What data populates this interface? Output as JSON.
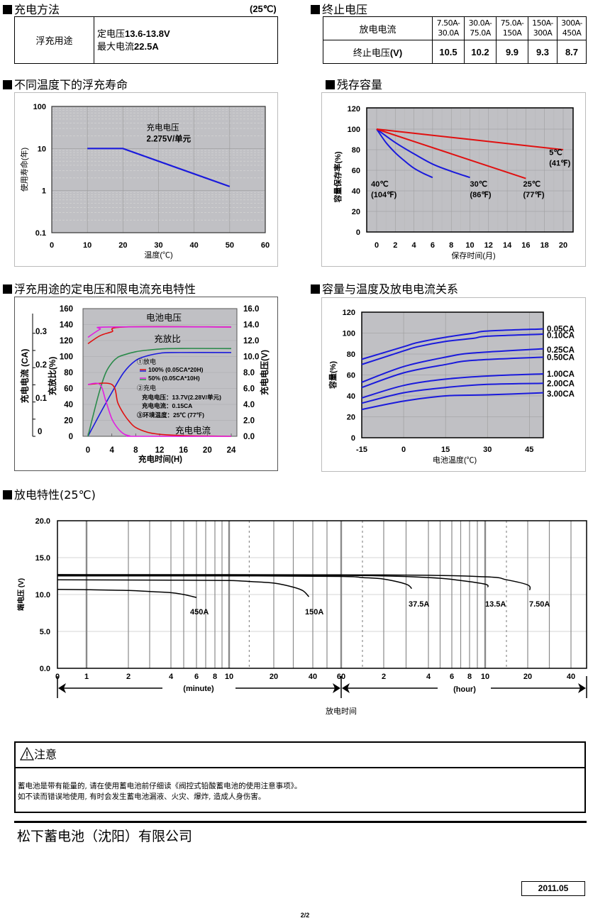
{
  "charging_method": {
    "title": "充电方法",
    "temp_note": "(25℃)",
    "usage_label": "浮充用途",
    "line1_label": "定电压",
    "line1_value": "13.6-13.8V",
    "line2_label": "最大电流",
    "line2_value": "22.5A"
  },
  "cutoff_voltage": {
    "title": "终止电压",
    "row1_header": "放电电流",
    "row2_header_label": "终止电压",
    "row2_header_unit": "(V)",
    "columns": [
      {
        "current_top": "7.50A-",
        "current_bottom": "30.0A",
        "voltage": "10.5"
      },
      {
        "current_top": "30.0A-",
        "current_bottom": "75.0A",
        "voltage": "10.2"
      },
      {
        "current_top": "75.0A-",
        "current_bottom": "150A",
        "voltage": "9.9"
      },
      {
        "current_top": "150A-",
        "current_bottom": "300A",
        "voltage": "9.3"
      },
      {
        "current_top": "300A-",
        "current_bottom": "450A",
        "voltage": "8.7"
      }
    ]
  },
  "float_life": {
    "title": "不同温度下的浮充寿命"
  },
  "residual": {
    "title": "残存容量"
  },
  "float_charge": {
    "title": "浮充用途的定电压和限电流充电特性"
  },
  "capacity_temp": {
    "title": "容量与温度及放电电流关系"
  },
  "discharge": {
    "title": "放电特性(25℃)"
  },
  "caution": {
    "title": "注意",
    "lines": [
      "蓄电池是带有能量的, 请在使用蓄电池前仔细读《阀控式铅酸蓄电池的使用注意事项》。",
      "如不读而错误地使用, 有时会发生蓄电池漏液、火灾、爆炸, 造成人身伤害。"
    ]
  },
  "company": "松下蓄电池（沈阳）有限公司",
  "date": "2011.05",
  "page": "2/2",
  "chart_data": [
    {
      "id": "float_life",
      "type": "line",
      "title": "不同温度下的浮充寿命",
      "xlabel": "温度(℃)",
      "ylabel": "使用寿命(年)",
      "xlim": [
        0,
        60
      ],
      "xticks": [
        0,
        10,
        20,
        30,
        40,
        50,
        60
      ],
      "ylim": [
        0.1,
        100
      ],
      "yscale": "log",
      "yticks": [
        0.1,
        1,
        10,
        100
      ],
      "ytick_labels": [
        "0.1",
        "1",
        "10",
        "100"
      ],
      "grid": true,
      "annotation": {
        "line1": "充电电压",
        "line2": "2.275V/单元",
        "x": 30,
        "y": 25
      },
      "series": [
        {
          "name": "2.275V/单元",
          "color": "#1a1adc",
          "x": [
            10,
            20,
            50
          ],
          "y": [
            10,
            10,
            1.25
          ]
        }
      ]
    },
    {
      "id": "residual",
      "type": "line",
      "title": "残存容量",
      "xlabel": "保存时间(月)",
      "ylabel": "容量保存率(%)",
      "xlim": [
        0,
        20
      ],
      "xticks": [
        0,
        2,
        4,
        6,
        8,
        10,
        12,
        14,
        16,
        18,
        20
      ],
      "ylim": [
        0,
        120
      ],
      "yticks": [
        0,
        20,
        40,
        60,
        80,
        100,
        120
      ],
      "grid": true,
      "series": [
        {
          "name": "40℃",
          "label2": "(104℉)",
          "color": "#1a1adc",
          "x": [
            0,
            1,
            2,
            3,
            4,
            5,
            6
          ],
          "y": [
            100,
            87,
            77,
            69,
            62,
            57,
            53
          ],
          "label_at": [
            -0.6,
            44
          ]
        },
        {
          "name": "30℃",
          "label2": "(86℉)",
          "color": "#1a1adc",
          "x": [
            0,
            2,
            4,
            6,
            8,
            10
          ],
          "y": [
            100,
            87,
            76,
            66,
            59,
            53
          ],
          "label_at": [
            10,
            44
          ]
        },
        {
          "name": "25℃",
          "label2": "(77℉)",
          "color": "#e01010",
          "x": [
            0,
            8,
            16
          ],
          "y": [
            100,
            76,
            52
          ],
          "label_at": [
            15.7,
            44
          ]
        },
        {
          "name": "5℃",
          "label2": "(41℉)",
          "color": "#e01010",
          "x": [
            0,
            20
          ],
          "y": [
            100,
            80
          ],
          "label_at": [
            18.5,
            75
          ]
        }
      ]
    },
    {
      "id": "float_charge",
      "type": "line",
      "title": "浮充用途的定电压和限电流充电特性",
      "xlabel": "充电时间(H)",
      "xlim": [
        0,
        24
      ],
      "xticks": [
        0,
        4,
        8,
        12,
        16,
        20,
        24
      ],
      "y_left_label": "充放比(%)",
      "y_left_lim": [
        0,
        160
      ],
      "y_left_ticks": [
        0,
        20,
        40,
        60,
        80,
        100,
        120,
        140,
        160
      ],
      "y_right_label": "充电电压(V)",
      "y_right_lim": [
        0,
        16
      ],
      "y_right_ticks": [
        "0.0",
        "2.0",
        "4.0",
        "6.0",
        "8.0",
        "10.0",
        "12.0",
        "14.0",
        "16.0"
      ],
      "y_current_label": "充电电流 (CA)",
      "y_current_ticks": [
        "0",
        "0.1",
        "0.2",
        "0.3"
      ],
      "labels": {
        "voltage": "电池电压",
        "ratio": "充放比",
        "current": "充电电流"
      },
      "legend": {
        "item1": "①放电",
        "item1a": "100% (0.05CA*20H)",
        "item1b": "50% (0.05CA*10H)",
        "item2": "②充电",
        "item2a": "充电电压：13.7V(2.28V/单元)",
        "item2b": "充电电流：0.15CA",
        "item3": "③环境温度：25℃ (77℉)"
      },
      "series": [
        {
          "name": "电压 100%",
          "color": "#e01010",
          "x": [
            0,
            2,
            4,
            6,
            24
          ],
          "y": [
            116,
            126,
            131,
            137,
            137
          ]
        },
        {
          "name": "电压 50%",
          "color": "#e020e0",
          "x": [
            0,
            2,
            3.5,
            24
          ],
          "y": [
            124,
            134,
            137,
            137
          ]
        },
        {
          "name": "充放比 100%",
          "color": "#1a1adc",
          "x": [
            0,
            2,
            4,
            6,
            8,
            10,
            12,
            14,
            24
          ],
          "y": [
            0,
            28,
            55,
            80,
            95,
            101,
            104,
            105,
            105
          ]
        },
        {
          "name": "充放比 50%",
          "color": "#2a8a4a",
          "x": [
            0,
            1,
            2,
            3,
            4,
            5,
            6,
            8,
            10,
            14,
            24
          ],
          "y": [
            0,
            30,
            58,
            80,
            92,
            99,
            102,
            106,
            108,
            110,
            110
          ]
        },
        {
          "name": "电流 100%",
          "color": "#e01010",
          "x": [
            0,
            4,
            5,
            6,
            7,
            8,
            10,
            12,
            14,
            18,
            24
          ],
          "y": [
            65,
            65,
            42,
            28,
            18,
            11,
            5,
            2.5,
            1.5,
            0.5,
            0
          ]
        },
        {
          "name": "电流 50%",
          "color": "#e020e0",
          "x": [
            0,
            2,
            3,
            4,
            5,
            6,
            7,
            8,
            24
          ],
          "y": [
            65,
            65,
            44,
            22,
            10,
            3,
            0.5,
            0,
            0
          ]
        }
      ]
    },
    {
      "id": "capacity_temp",
      "type": "line",
      "title": "容量与温度及放电电流关系",
      "xlabel": "电池温度(℃)",
      "ylabel": "容量(%)",
      "xlim": [
        -15,
        50
      ],
      "xticks": [
        -15,
        0,
        15,
        30,
        45
      ],
      "ylim": [
        0,
        120
      ],
      "yticks": [
        0,
        20,
        40,
        60,
        80,
        100,
        120
      ],
      "grid": true,
      "series": [
        {
          "name": "0.05CA",
          "x": [
            -15,
            0,
            5,
            15,
            25,
            30,
            50
          ],
          "y": [
            75,
            87,
            91,
            96,
            100,
            102,
            104
          ],
          "label_y": 104
        },
        {
          "name": "0.10CA",
          "x": [
            -15,
            0,
            5,
            15,
            25,
            30,
            50
          ],
          "y": [
            70,
            83,
            87,
            92,
            95,
            97,
            99
          ],
          "label_y": 98
        },
        {
          "name": "0.25CA",
          "x": [
            -15,
            0,
            15,
            25,
            50
          ],
          "y": [
            53,
            68,
            77,
            81,
            85
          ],
          "label_y": 84
        },
        {
          "name": "0.50CA",
          "x": [
            -15,
            0,
            15,
            25,
            50
          ],
          "y": [
            48,
            62,
            70,
            74,
            77
          ],
          "label_y": 77
        },
        {
          "name": "1.00CA",
          "x": [
            -15,
            0,
            15,
            30,
            50
          ],
          "y": [
            38,
            50,
            56,
            59,
            61
          ],
          "label_y": 61
        },
        {
          "name": "2.00CA",
          "x": [
            -15,
            0,
            15,
            30,
            50
          ],
          "y": [
            33,
            43,
            48,
            51,
            52
          ],
          "label_y": 52
        },
        {
          "name": "3.00CA",
          "x": [
            -15,
            0,
            15,
            30,
            50
          ],
          "y": [
            27,
            35,
            40,
            41,
            43
          ],
          "label_y": 42
        }
      ]
    },
    {
      "id": "discharge",
      "type": "line",
      "title": "放电特性(25℃)",
      "xlabel": "放电时间",
      "ylabel": "端电压 (V)",
      "ylim": [
        0,
        20
      ],
      "yticks": [
        "0.0",
        "5.0",
        "10.0",
        "15.0",
        "20.0"
      ],
      "x_unit": "minutes (piecewise log-like scale)",
      "xticks_minutes": [
        0,
        1,
        2,
        4,
        6,
        8,
        10,
        20,
        40,
        60,
        120,
        240,
        360,
        480,
        600,
        1200,
        2400
      ],
      "xtick_labels": [
        "0",
        "1",
        "2",
        "4",
        "6",
        "8",
        "10",
        "20",
        "40",
        "60",
        "2",
        "4",
        "6",
        "8",
        "10",
        "20",
        "40"
      ],
      "minute_label": "(minute)",
      "hour_label": "(hour)",
      "grid": true,
      "series": [
        {
          "name": "450A",
          "x": [
            0,
            1,
            2,
            3,
            4,
            5,
            6
          ],
          "y": [
            10.7,
            10.65,
            10.55,
            10.4,
            10.25,
            10.0,
            9.6
          ]
        },
        {
          "name": "150A",
          "x": [
            0,
            4,
            10,
            15,
            20,
            30,
            35,
            38
          ],
          "y": [
            12.0,
            11.95,
            11.9,
            11.75,
            11.55,
            11.0,
            10.5,
            9.7
          ]
        },
        {
          "name": "37.5A",
          "x": [
            0,
            10,
            60,
            90,
            120,
            180,
            195
          ],
          "y": [
            12.6,
            12.55,
            12.45,
            12.3,
            12.1,
            11.4,
            10.8
          ]
        },
        {
          "name": "13.5A",
          "x": [
            0,
            60,
            240,
            420,
            600,
            640
          ],
          "y": [
            12.65,
            12.6,
            12.3,
            11.9,
            11.4,
            11.0
          ]
        },
        {
          "name": "7.50A",
          "x": [
            0,
            120,
            600,
            900,
            1200,
            1260
          ],
          "y": [
            12.7,
            12.65,
            12.4,
            12.0,
            11.3,
            10.6
          ]
        }
      ]
    }
  ]
}
